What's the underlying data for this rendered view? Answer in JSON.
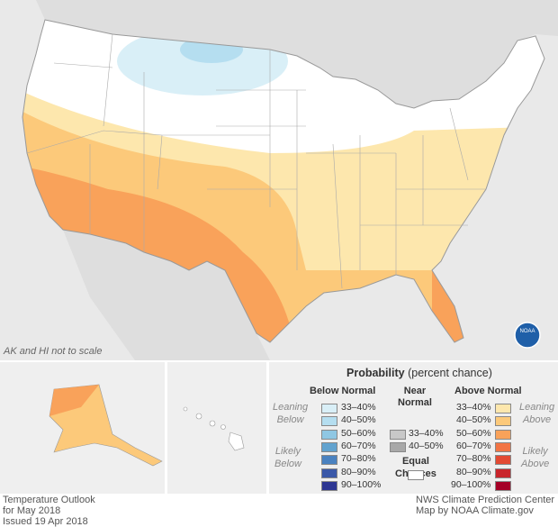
{
  "map": {
    "note": "AK and HI not to scale",
    "logo": "NOAA"
  },
  "legend": {
    "title": "Probability",
    "subtitle": "(percent chance)",
    "below": {
      "heading": "Below Normal",
      "leaning": [
        "Leaning",
        "Below"
      ],
      "likely": [
        "Likely",
        "Below"
      ],
      "items": [
        {
          "label": "33–40%",
          "color": "#d9eff7"
        },
        {
          "label": "40–50%",
          "color": "#b5def0"
        },
        {
          "label": "50–60%",
          "color": "#8fc7e3"
        },
        {
          "label": "60–70%",
          "color": "#62a3cf"
        },
        {
          "label": "70–80%",
          "color": "#4a82c0"
        },
        {
          "label": "80–90%",
          "color": "#3a58a8"
        },
        {
          "label": "90–100%",
          "color": "#2c3592"
        }
      ]
    },
    "near": {
      "heading": [
        "Near",
        "Normal"
      ],
      "items": [
        {
          "label": "33–40%",
          "color": "#c8c8c8"
        },
        {
          "label": "40–50%",
          "color": "#a8a8a8"
        }
      ]
    },
    "equal": {
      "heading": [
        "Equal",
        "Chances"
      ],
      "color": "#ffffff"
    },
    "above": {
      "heading": "Above Normal",
      "leaning": [
        "Leaning",
        "Above"
      ],
      "likely": [
        "Likely",
        "Above"
      ],
      "items": [
        {
          "label": "33–40%",
          "color": "#fde7ad"
        },
        {
          "label": "40–50%",
          "color": "#fcc97a"
        },
        {
          "label": "50–60%",
          "color": "#f9a25a"
        },
        {
          "label": "60–70%",
          "color": "#f27444"
        },
        {
          "label": "70–80%",
          "color": "#e34a33"
        },
        {
          "label": "80–90%",
          "color": "#c9252b"
        },
        {
          "label": "90–100%",
          "color": "#a50026"
        }
      ]
    }
  },
  "footer": {
    "left": [
      "Temperature Outlook",
      "for May 2018",
      "Issued 19 Apr 2018"
    ],
    "right": [
      "NWS Climate Prediction Center",
      "Map by NOAA Climate.gov"
    ]
  }
}
